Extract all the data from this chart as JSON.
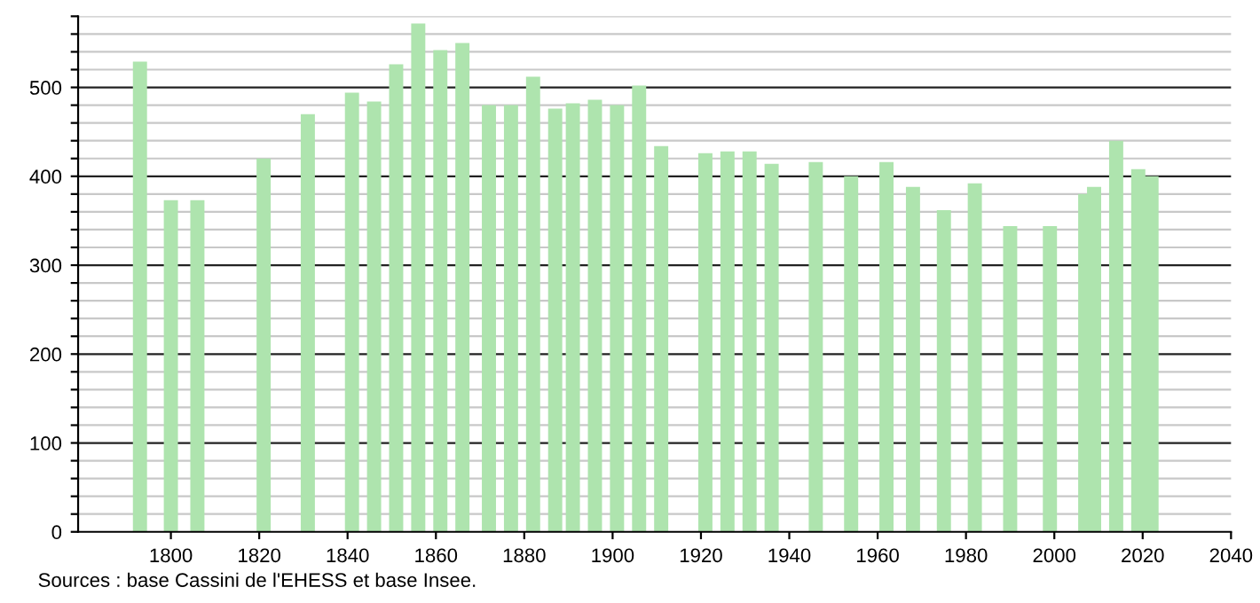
{
  "chart_data": {
    "type": "bar",
    "color": "#aee4ae",
    "x": [
      1793,
      1800,
      1806,
      1821,
      1831,
      1841,
      1846,
      1851,
      1856,
      1861,
      1866,
      1872,
      1877,
      1882,
      1887,
      1891,
      1896,
      1901,
      1906,
      1911,
      1921,
      1926,
      1931,
      1936,
      1946,
      1954,
      1962,
      1968,
      1975,
      1982,
      1990,
      1999,
      2007,
      2009,
      2014,
      2019,
      2022
    ],
    "values": [
      529,
      373,
      373,
      420,
      470,
      494,
      484,
      526,
      572,
      542,
      550,
      480,
      480,
      512,
      476,
      482,
      486,
      480,
      502,
      434,
      426,
      428,
      428,
      414,
      416,
      400,
      416,
      388,
      362,
      392,
      344,
      344,
      380,
      388,
      440,
      408,
      400
    ],
    "xlim": [
      1779,
      2040
    ],
    "xticks": [
      1800,
      1820,
      1840,
      1860,
      1880,
      1900,
      1920,
      1940,
      1960,
      1980,
      2000,
      2020,
      2040
    ],
    "ylim": [
      0,
      580
    ],
    "yticks": [
      0,
      {
        "value": 20,
        "label": null
      },
      {
        "value": 40,
        "label": null
      },
      {
        "value": 60,
        "label": null
      },
      {
        "value": 80,
        "label": null
      },
      100,
      {
        "value": 120,
        "label": null
      },
      {
        "value": 140,
        "label": null
      },
      {
        "value": 160,
        "label": null
      },
      {
        "value": 180,
        "label": null
      },
      200,
      {
        "value": 220,
        "label": null
      },
      {
        "value": 240,
        "label": null
      },
      {
        "value": 260,
        "label": null
      },
      {
        "value": 280,
        "label": null
      },
      300,
      {
        "value": 320,
        "label": null
      },
      {
        "value": 340,
        "label": null
      },
      {
        "value": 360,
        "label": null
      },
      {
        "value": 380,
        "label": null
      },
      400,
      {
        "value": 420,
        "label": null
      },
      {
        "value": 440,
        "label": null
      },
      {
        "value": 460,
        "label": null
      },
      {
        "value": 480,
        "label": null
      },
      500,
      {
        "value": 520,
        "label": null
      },
      {
        "value": 540,
        "label": null
      },
      {
        "value": 560,
        "label": null
      },
      {
        "value": 580,
        "label": null
      }
    ],
    "grid": "y",
    "annotations": [
      "Sources : base Cassini de l'EHESS et base Insee."
    ]
  }
}
